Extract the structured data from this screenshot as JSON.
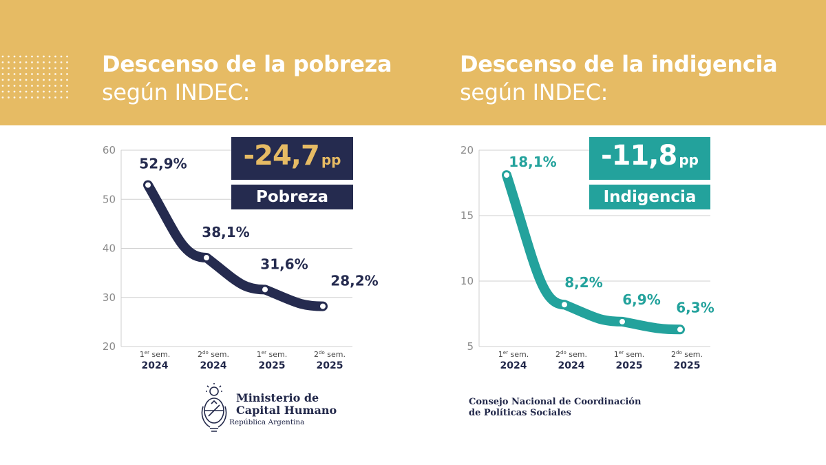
{
  "titles": {
    "left": {
      "line1": "Descenso de la pobreza",
      "line2": "según INDEC:"
    },
    "right": {
      "line1": "Descenso de la indigencia",
      "line2": "según INDEC:"
    }
  },
  "colors": {
    "banner": "#e6bb64",
    "navy": "#252b4f",
    "teal": "#23a29c",
    "gold": "#e6bb64"
  },
  "chart_data": [
    {
      "type": "line",
      "id": "pobreza",
      "title": "Descenso de la pobreza según INDEC:",
      "categories": [
        {
          "top": "1er sem.",
          "year": "2024"
        },
        {
          "top": "2do sem.",
          "year": "2024"
        },
        {
          "top": "1er sem.",
          "year": "2025"
        },
        {
          "top": "2do sem.",
          "year": "2025"
        }
      ],
      "values": [
        52.9,
        38.1,
        31.6,
        28.2
      ],
      "data_labels": [
        "52,9%",
        "38,1%",
        "31,6%",
        "28,2%"
      ],
      "ylim": [
        20,
        60
      ],
      "yticks": [
        20,
        30,
        40,
        50,
        60
      ],
      "grid": true,
      "color": "#252b4f",
      "badge": {
        "value": "-24,7",
        "unit": "pp",
        "label": "Pobreza"
      }
    },
    {
      "type": "line",
      "id": "indigencia",
      "title": "Descenso de la indigencia según INDEC:",
      "categories": [
        {
          "top": "1er sem.",
          "year": "2024"
        },
        {
          "top": "2do sem.",
          "year": "2024"
        },
        {
          "top": "1er sem.",
          "year": "2025"
        },
        {
          "top": "2do sem.",
          "year": "2025"
        }
      ],
      "values": [
        18.1,
        8.2,
        6.9,
        6.3
      ],
      "data_labels": [
        "18,1%",
        "8,2%",
        "6,9%",
        "6,3%"
      ],
      "ylim": [
        5,
        20
      ],
      "yticks": [
        5,
        10,
        15,
        20
      ],
      "grid": true,
      "color": "#23a29c",
      "badge": {
        "value": "-11,8",
        "unit": "pp",
        "label": "Indigencia"
      }
    }
  ],
  "footer": {
    "ministry": {
      "line1": "Ministerio de",
      "line2": "Capital Humano",
      "sub": "República Argentina"
    },
    "council": {
      "line1": "Consejo Nacional de Coordinación",
      "line2": "de Políticas Sociales"
    }
  }
}
